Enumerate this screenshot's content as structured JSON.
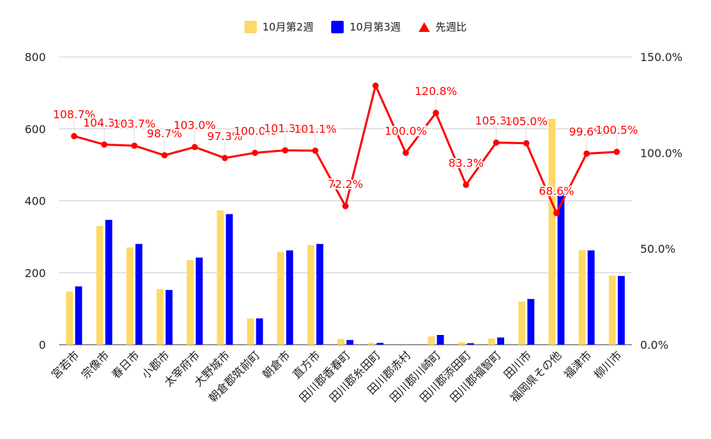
{
  "chart_data": {
    "type": "bar",
    "categories": [
      "宮若市",
      "宗像市",
      "春日市",
      "小郡市",
      "太宰府市",
      "大野城市",
      "朝倉郡筑前町",
      "朝倉市",
      "直方市",
      "田川郡香春町",
      "田川郡糸田町",
      "田川郡赤村",
      "田川郡川崎町",
      "田川郡添田町",
      "田川郡福智町",
      "田川市",
      "福岡県その他",
      "福津市",
      "柳川市"
    ],
    "series": [
      {
        "name": "10月第2週",
        "type": "bar",
        "axis": "left",
        "color": "#FFD966",
        "values": [
          148,
          330,
          270,
          155,
          235,
          373,
          73,
          258,
          277,
          16,
          5,
          0,
          23,
          7,
          17,
          120,
          628,
          263,
          192
        ]
      },
      {
        "name": "10月第3週",
        "type": "bar",
        "axis": "left",
        "color": "#0000FF",
        "values": [
          162,
          347,
          280,
          152,
          242,
          363,
          73,
          262,
          280,
          13,
          5,
          0,
          27,
          4,
          20,
          127,
          428,
          262,
          191
        ]
      },
      {
        "name": "先週比",
        "type": "line",
        "axis": "right",
        "color": "#FF0000",
        "values": [
          108.7,
          104.3,
          103.7,
          98.7,
          103.0,
          97.3,
          100.0,
          101.3,
          101.1,
          72.2,
          135.0,
          100.0,
          120.8,
          83.3,
          105.3,
          105.0,
          68.6,
          99.6,
          100.5
        ],
        "labels": [
          "108.7%",
          "104.3%",
          "103.7%",
          "98.7%",
          "103.0%",
          "97.3%",
          "100.0%",
          "101.3%",
          "101.1%",
          "72.2%",
          "",
          "100.0%",
          "120.8%",
          "83.3%",
          "105.3%",
          "105.0%",
          "68.6%",
          "99.6%",
          "100.5%"
        ]
      }
    ],
    "left_axis": {
      "ticks": [
        "0",
        "200",
        "400",
        "600",
        "800"
      ],
      "ylim": [
        0,
        800
      ]
    },
    "right_axis": {
      "ticks": [
        "0.0%",
        "50.0%",
        "100.0%",
        "150.0%"
      ],
      "ylim": [
        0,
        150
      ]
    },
    "legend_position": "top-center",
    "grid": true
  }
}
